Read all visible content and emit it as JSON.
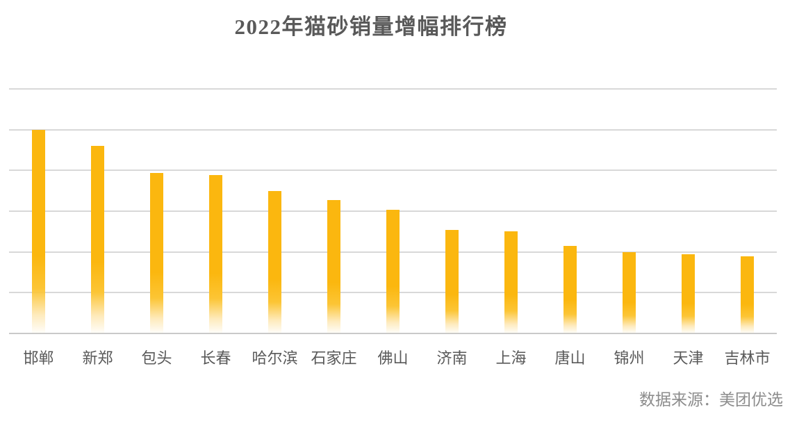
{
  "title": "2022年猫砂销量增幅排行榜",
  "source_note": "数据来源：美团优选",
  "colors": {
    "background": "#FFFFFF",
    "bar": "#FBB70F",
    "title_text": "#595959",
    "axis_text": "#595959",
    "source_text": "#8C8C8C",
    "gridline": "#D8D8D8",
    "baseline": "#C9C9C9"
  },
  "chart_data": {
    "type": "bar",
    "title": "2022年猫砂销量增幅排行榜",
    "categories": [
      "邯郸",
      "新郑",
      "包头",
      "长春",
      "哈尔滨",
      "石家庄",
      "佛山",
      "济南",
      "上海",
      "唐山",
      "锦州",
      "天津",
      "吉林市"
    ],
    "values": [
      5.0,
      4.6,
      3.93,
      3.89,
      3.49,
      3.28,
      3.03,
      2.54,
      2.5,
      2.15,
      2.0,
      1.94,
      1.89
    ],
    "value_note": "values estimated in gridline units; y axis has no tick labels in the image",
    "xlabel": "",
    "ylabel": "",
    "ylim": [
      0,
      6
    ],
    "gridline_divisions": 6,
    "grid": true,
    "y_ticks_labeled": false,
    "legend": false,
    "bar_color": "#FBB70F",
    "bar_style": "solid gold fading to white toward the baseline",
    "source": "数据来源：美团优选"
  }
}
